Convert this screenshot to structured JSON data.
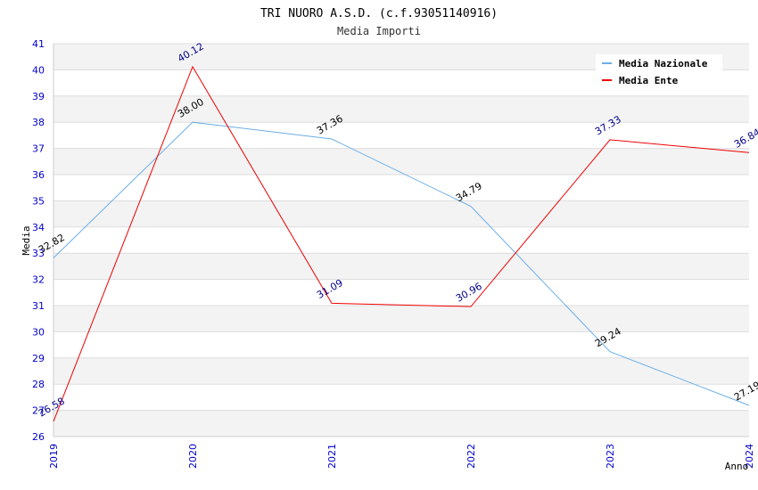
{
  "chart_data": {
    "type": "line",
    "title": "TRI NUORO A.S.D. (c.f.93051140916)",
    "subtitle": "Media Importi",
    "xlabel": "Anno",
    "ylabel": "Media",
    "ylim": [
      26,
      41
    ],
    "yticks": [
      "26",
      "27",
      "28",
      "29",
      "30",
      "31",
      "32",
      "33",
      "34",
      "35",
      "36",
      "37",
      "38",
      "39",
      "40",
      "41"
    ],
    "x": [
      "2019",
      "2020",
      "2021",
      "2022",
      "2023",
      "2024"
    ],
    "grid": true,
    "legend_position": "top-right",
    "series": [
      {
        "name": "Media Nazionale",
        "color": "#6aaee8",
        "label_color": "#000000",
        "values": [
          32.82,
          38.0,
          37.36,
          34.79,
          29.24,
          27.19
        ],
        "labels": [
          "32.82",
          "38.00",
          "37.36",
          "34.79",
          "29.24",
          "27.19"
        ]
      },
      {
        "name": "Media Ente",
        "color": "#ee0000",
        "label_color": "#00008b",
        "values": [
          26.58,
          40.12,
          31.09,
          30.96,
          37.33,
          36.84
        ],
        "labels": [
          "26.58",
          "40.12",
          "31.09",
          "30.96",
          "37.33",
          "36.84"
        ]
      }
    ]
  }
}
